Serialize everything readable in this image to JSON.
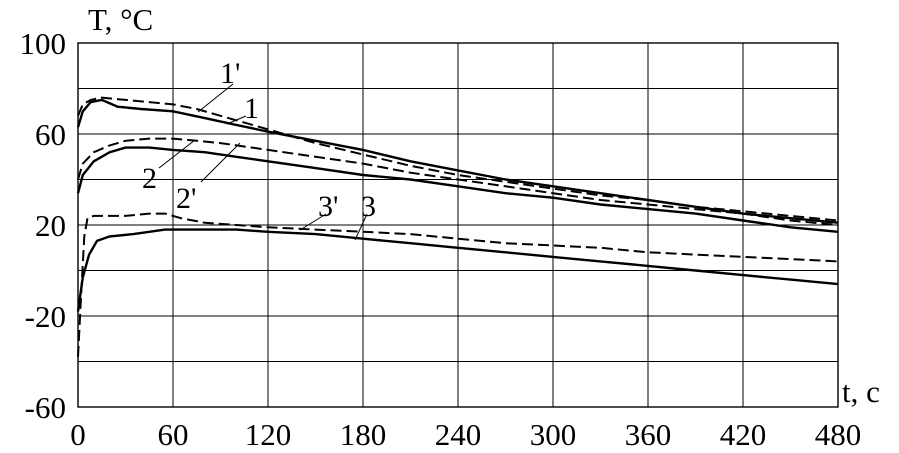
{
  "chart_data": {
    "type": "line",
    "ylabel": "T, °C",
    "xlabel": "t, c",
    "xlim": [
      0,
      480
    ],
    "ylim": [
      -60,
      100
    ],
    "x_ticks": [
      0,
      60,
      120,
      180,
      240,
      300,
      360,
      420,
      480
    ],
    "y_ticks": [
      100,
      60,
      20,
      -20,
      -60
    ],
    "y_grid": [
      100,
      80,
      60,
      40,
      20,
      0,
      -20,
      -40,
      -60
    ],
    "grid": true,
    "series": [
      {
        "name": "1'",
        "style": "dashed",
        "points": [
          [
            0,
            68
          ],
          [
            3,
            73
          ],
          [
            8,
            75
          ],
          [
            15,
            76
          ],
          [
            30,
            75
          ],
          [
            45,
            74
          ],
          [
            60,
            73
          ],
          [
            75,
            71
          ],
          [
            90,
            68
          ],
          [
            105,
            65
          ],
          [
            120,
            62
          ],
          [
            150,
            56
          ],
          [
            180,
            51
          ],
          [
            210,
            46
          ],
          [
            240,
            42
          ],
          [
            270,
            39
          ],
          [
            300,
            36
          ],
          [
            330,
            33
          ],
          [
            360,
            31
          ],
          [
            390,
            28
          ],
          [
            420,
            26
          ],
          [
            450,
            24
          ],
          [
            480,
            22
          ]
        ]
      },
      {
        "name": "1",
        "style": "solid",
        "points": [
          [
            0,
            63
          ],
          [
            3,
            70
          ],
          [
            8,
            74
          ],
          [
            15,
            75
          ],
          [
            25,
            72
          ],
          [
            40,
            71
          ],
          [
            60,
            70
          ],
          [
            80,
            67
          ],
          [
            100,
            64
          ],
          [
            120,
            61
          ],
          [
            150,
            57
          ],
          [
            180,
            53
          ],
          [
            210,
            48
          ],
          [
            240,
            44
          ],
          [
            270,
            40
          ],
          [
            300,
            37
          ],
          [
            330,
            34
          ],
          [
            360,
            31
          ],
          [
            390,
            28
          ],
          [
            420,
            25
          ],
          [
            450,
            23
          ],
          [
            480,
            21
          ]
        ]
      },
      {
        "name": "2'",
        "style": "dashed",
        "points": [
          [
            0,
            40
          ],
          [
            3,
            47
          ],
          [
            10,
            52
          ],
          [
            20,
            55
          ],
          [
            30,
            57
          ],
          [
            45,
            58
          ],
          [
            60,
            58
          ],
          [
            75,
            57
          ],
          [
            90,
            56
          ],
          [
            120,
            53
          ],
          [
            150,
            50
          ],
          [
            180,
            47
          ],
          [
            210,
            43
          ],
          [
            240,
            40
          ],
          [
            270,
            37
          ],
          [
            300,
            34
          ],
          [
            330,
            31
          ],
          [
            360,
            29
          ],
          [
            390,
            27
          ],
          [
            420,
            25
          ],
          [
            450,
            22
          ],
          [
            480,
            20
          ]
        ]
      },
      {
        "name": "2",
        "style": "solid",
        "points": [
          [
            0,
            34
          ],
          [
            3,
            42
          ],
          [
            10,
            48
          ],
          [
            20,
            52
          ],
          [
            30,
            54
          ],
          [
            45,
            54
          ],
          [
            60,
            53
          ],
          [
            80,
            52
          ],
          [
            100,
            50
          ],
          [
            120,
            48
          ],
          [
            150,
            45
          ],
          [
            180,
            42
          ],
          [
            210,
            40
          ],
          [
            240,
            37
          ],
          [
            270,
            34
          ],
          [
            300,
            32
          ],
          [
            330,
            29
          ],
          [
            360,
            27
          ],
          [
            390,
            25
          ],
          [
            420,
            22
          ],
          [
            450,
            19
          ],
          [
            480,
            17
          ]
        ]
      },
      {
        "name": "3'",
        "style": "dashed",
        "points": [
          [
            0,
            -38
          ],
          [
            2,
            -10
          ],
          [
            4,
            15
          ],
          [
            6,
            23
          ],
          [
            10,
            24
          ],
          [
            20,
            24
          ],
          [
            30,
            24
          ],
          [
            45,
            25
          ],
          [
            55,
            25
          ],
          [
            65,
            23
          ],
          [
            80,
            21
          ],
          [
            100,
            20
          ],
          [
            120,
            19
          ],
          [
            150,
            18
          ],
          [
            180,
            17
          ],
          [
            210,
            16
          ],
          [
            240,
            14
          ],
          [
            270,
            12
          ],
          [
            300,
            11
          ],
          [
            330,
            10
          ],
          [
            360,
            8
          ],
          [
            390,
            7
          ],
          [
            420,
            6
          ],
          [
            450,
            5
          ],
          [
            480,
            4
          ]
        ]
      },
      {
        "name": "3",
        "style": "solid",
        "points": [
          [
            0,
            -18
          ],
          [
            3,
            -3
          ],
          [
            7,
            7
          ],
          [
            12,
            13
          ],
          [
            20,
            15
          ],
          [
            35,
            16
          ],
          [
            55,
            18
          ],
          [
            80,
            18
          ],
          [
            100,
            18
          ],
          [
            120,
            17
          ],
          [
            150,
            16
          ],
          [
            180,
            14
          ],
          [
            210,
            12
          ],
          [
            240,
            10
          ],
          [
            270,
            8
          ],
          [
            300,
            6
          ],
          [
            330,
            4
          ],
          [
            360,
            2
          ],
          [
            390,
            0
          ],
          [
            420,
            -2
          ],
          [
            450,
            -4
          ],
          [
            480,
            -6
          ]
        ]
      }
    ]
  }
}
